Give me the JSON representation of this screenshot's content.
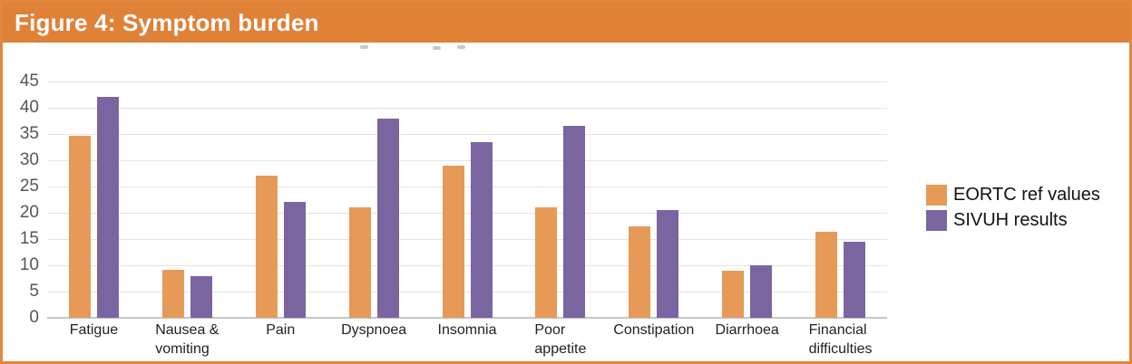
{
  "header": {
    "title": "Figure 4: Symptom burden"
  },
  "colors": {
    "header_bg": "#e08138",
    "figure_border": "#e2873c",
    "eortc_orange": "#e79a57",
    "sivuh_purple": "#7b65a1",
    "gridline": "#e4e4e4",
    "axis_line": "#c6c6c6",
    "ytick_text": "#565656",
    "category_text": "#222222",
    "legend_text": "#111111",
    "header_text": "#ffffff"
  },
  "chart_data": {
    "type": "bar",
    "categories": [
      "Fatigue",
      "Nausea &\nvomiting",
      "Pain",
      "Dyspnoea",
      "Insomnia",
      "Poor\nappetite",
      "Constipation",
      "Diarrhoea",
      "Financial\ndifficulties"
    ],
    "series": [
      {
        "name": "EORTC ref values",
        "color": "#e79a57",
        "values": [
          34.6,
          9.1,
          27,
          21,
          28.9,
          21.1,
          17.4,
          9,
          16.3
        ]
      },
      {
        "name": "SIVUH results",
        "color": "#7b65a1",
        "values": [
          42,
          8,
          22,
          38,
          33.5,
          36.5,
          20.5,
          10,
          14.5
        ]
      }
    ],
    "title": "",
    "xlabel": "",
    "ylabel": "",
    "ylim": [
      0,
      45
    ],
    "ytick_step": 5,
    "yticks": [
      45,
      40,
      35,
      30,
      25,
      20,
      15,
      10,
      5,
      0
    ],
    "grid": true,
    "legend_position": "right"
  }
}
